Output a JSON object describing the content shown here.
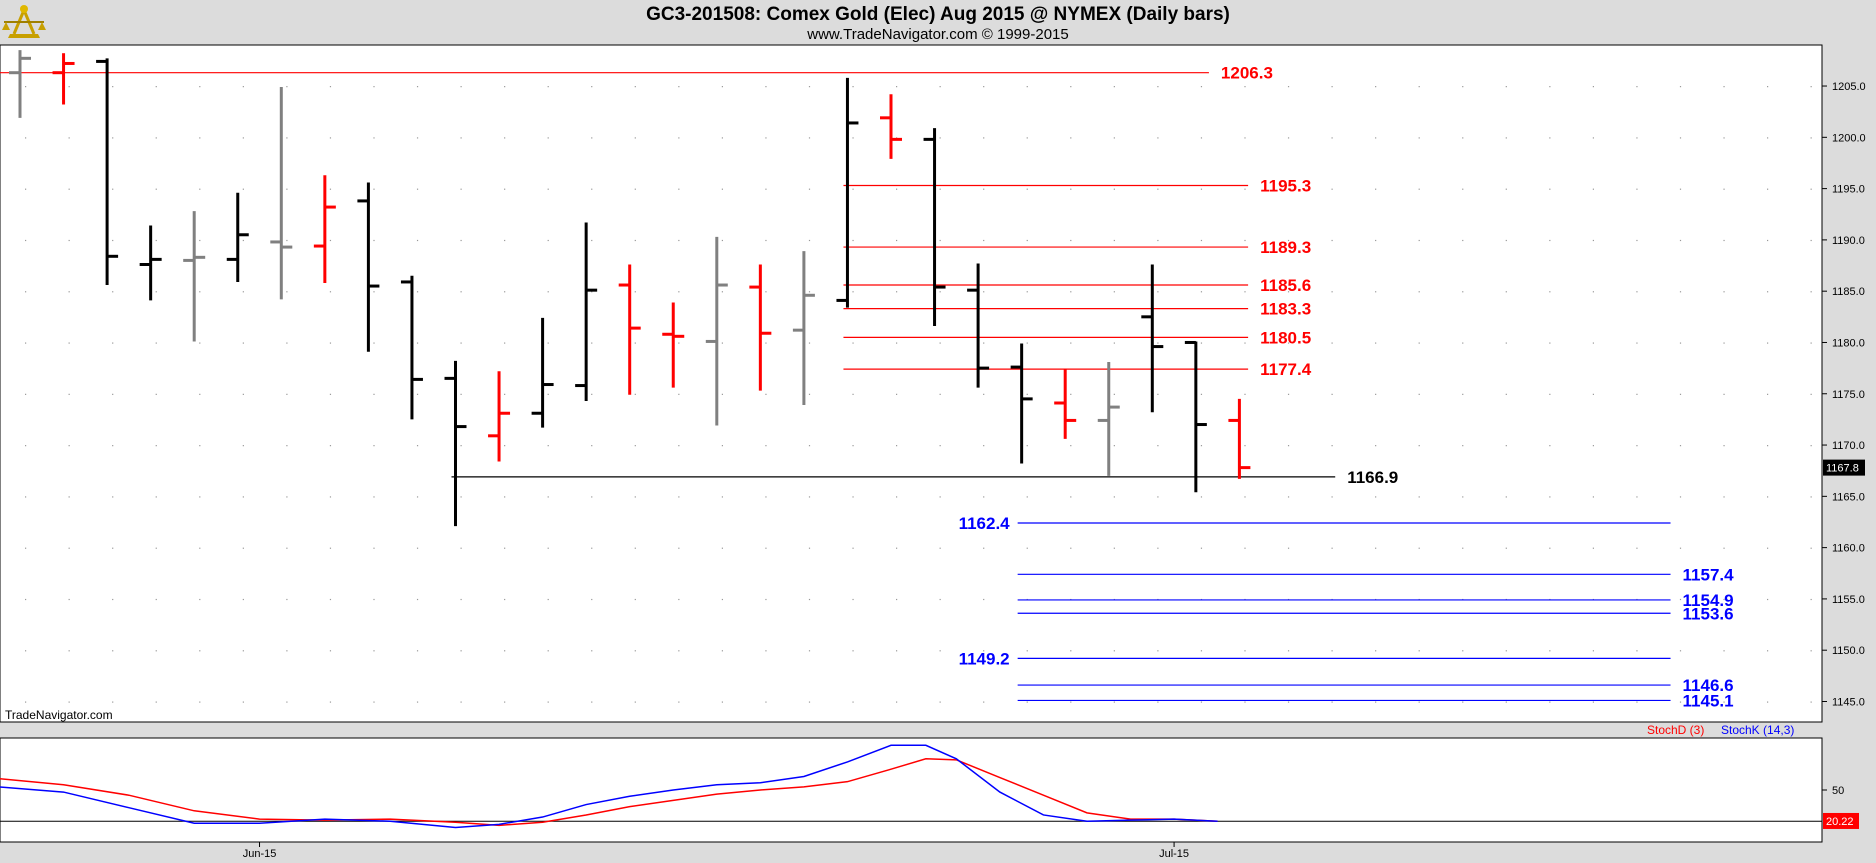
{
  "header": {
    "title": "GC3-201508:  Comex Gold (Elec) Aug 2015 @ NYMEX  (Daily bars)",
    "subtitle": "www.TradeNavigator.com © 1999-2015",
    "watermark": "TradeNavigator.com"
  },
  "colors": {
    "up": "#000000",
    "down": "#ff0000",
    "flat": "#808080",
    "resistance": "#ff0000",
    "support": "#0000ff",
    "pivot": "#000000",
    "stochD": "#ff0000",
    "stochK": "#0000ff"
  },
  "chart_data": [
    {
      "type": "ohlc",
      "title": "GC3-201508:  Comex Gold (Elec) Aug 2015 @ NYMEX  (Daily bars)",
      "ylim": [
        1143.0,
        1209.0
      ],
      "y_ticks": [
        "1205.0",
        "1200.0",
        "1195.0",
        "1190.0",
        "1185.0",
        "1180.0",
        "1175.0",
        "1170.0",
        "1165.0",
        "1160.0",
        "1155.0",
        "1150.0",
        "1145.0"
      ],
      "x_ticks": [
        {
          "label": "Jun-15",
          "bar": 5.5
        },
        {
          "label": "Jul-15",
          "bar": 26.5
        }
      ],
      "last_price": "1167.8",
      "bars": [
        {
          "o": 1206.3,
          "h": 1208.5,
          "l": 1201.9,
          "c": 1207.7,
          "col": "flat"
        },
        {
          "o": 1206.3,
          "h": 1208.2,
          "l": 1203.2,
          "c": 1207.2,
          "col": "down"
        },
        {
          "o": 1207.4,
          "h": 1207.7,
          "l": 1185.6,
          "c": 1188.4,
          "col": "up"
        },
        {
          "o": 1187.6,
          "h": 1191.4,
          "l": 1184.1,
          "c": 1188.1,
          "col": "up"
        },
        {
          "o": 1188.0,
          "h": 1192.8,
          "l": 1180.1,
          "c": 1188.3,
          "col": "flat"
        },
        {
          "o": 1188.1,
          "h": 1194.6,
          "l": 1185.9,
          "c": 1190.5,
          "col": "up"
        },
        {
          "o": 1189.8,
          "h": 1204.9,
          "l": 1184.2,
          "c": 1189.3,
          "col": "flat"
        },
        {
          "o": 1189.4,
          "h": 1196.3,
          "l": 1185.8,
          "c": 1193.2,
          "col": "down"
        },
        {
          "o": 1193.8,
          "h": 1195.6,
          "l": 1179.1,
          "c": 1185.5,
          "col": "up"
        },
        {
          "o": 1185.9,
          "h": 1186.5,
          "l": 1172.5,
          "c": 1176.4,
          "col": "up"
        },
        {
          "o": 1176.5,
          "h": 1178.2,
          "l": 1162.1,
          "c": 1171.8,
          "col": "up"
        },
        {
          "o": 1170.9,
          "h": 1177.2,
          "l": 1168.4,
          "c": 1173.1,
          "col": "down"
        },
        {
          "o": 1173.1,
          "h": 1182.4,
          "l": 1171.7,
          "c": 1175.9,
          "col": "up"
        },
        {
          "o": 1175.8,
          "h": 1191.7,
          "l": 1174.3,
          "c": 1185.1,
          "col": "up"
        },
        {
          "o": 1185.6,
          "h": 1187.6,
          "l": 1174.9,
          "c": 1181.4,
          "col": "down"
        },
        {
          "o": 1180.8,
          "h": 1183.9,
          "l": 1175.6,
          "c": 1180.6,
          "col": "down"
        },
        {
          "o": 1180.1,
          "h": 1190.3,
          "l": 1171.9,
          "c": 1185.6,
          "col": "flat"
        },
        {
          "o": 1185.4,
          "h": 1187.6,
          "l": 1175.3,
          "c": 1180.9,
          "col": "down"
        },
        {
          "o": 1181.2,
          "h": 1188.9,
          "l": 1173.9,
          "c": 1184.6,
          "col": "flat"
        },
        {
          "o": 1184.1,
          "h": 1205.8,
          "l": 1183.4,
          "c": 1201.4,
          "col": "up"
        },
        {
          "o": 1201.9,
          "h": 1204.2,
          "l": 1197.9,
          "c": 1199.8,
          "col": "down"
        },
        {
          "o": 1199.8,
          "h": 1200.9,
          "l": 1181.6,
          "c": 1185.4,
          "col": "up"
        },
        {
          "o": 1185.1,
          "h": 1187.7,
          "l": 1175.6,
          "c": 1177.5,
          "col": "up"
        },
        {
          "o": 1177.6,
          "h": 1179.9,
          "l": 1168.2,
          "c": 1174.5,
          "col": "up"
        },
        {
          "o": 1174.1,
          "h": 1177.4,
          "l": 1170.6,
          "c": 1172.4,
          "col": "down"
        },
        {
          "o": 1172.4,
          "h": 1178.1,
          "l": 1167.0,
          "c": 1173.7,
          "col": "flat"
        },
        {
          "o": 1182.5,
          "h": 1187.6,
          "l": 1173.2,
          "c": 1179.6,
          "col": "up"
        },
        {
          "o": 1180.0,
          "h": 1180.1,
          "l": 1165.4,
          "c": 1172.0,
          "col": "up"
        },
        {
          "o": 1172.4,
          "h": 1174.5,
          "l": 1166.7,
          "c": 1167.8,
          "col": "down"
        }
      ],
      "levels": [
        {
          "value": 1206.3,
          "label": "1206.3",
          "color": "resistance",
          "from_bar": -1,
          "to_bar": 27.3,
          "label_side": "right"
        },
        {
          "value": 1195.3,
          "label": "1195.3",
          "color": "resistance",
          "from_bar": 19,
          "to_bar": 28.2,
          "label_side": "right"
        },
        {
          "value": 1189.3,
          "label": "1189.3",
          "color": "resistance",
          "from_bar": 19,
          "to_bar": 28.2,
          "label_side": "right"
        },
        {
          "value": 1185.6,
          "label": "1185.6",
          "color": "resistance",
          "from_bar": 19,
          "to_bar": 28.2,
          "label_side": "right"
        },
        {
          "value": 1183.3,
          "label": "1183.3",
          "color": "resistance",
          "from_bar": 19,
          "to_bar": 28.2,
          "label_side": "right"
        },
        {
          "value": 1180.5,
          "label": "1180.5",
          "color": "resistance",
          "from_bar": 19,
          "to_bar": 28.2,
          "label_side": "right"
        },
        {
          "value": 1177.4,
          "label": "1177.4",
          "color": "resistance",
          "from_bar": 19,
          "to_bar": 28.2,
          "label_side": "right"
        },
        {
          "value": 1166.9,
          "label": "1166.9",
          "color": "pivot",
          "from_bar": 10,
          "to_bar": 30.2,
          "label_side": "right"
        },
        {
          "value": 1162.4,
          "label": "1162.4",
          "color": "support",
          "from_bar": 23,
          "to_bar": 37.9,
          "label_side": "left"
        },
        {
          "value": 1157.4,
          "label": "1157.4",
          "color": "support",
          "from_bar": 23,
          "to_bar": 37.9,
          "label_side": "right"
        },
        {
          "value": 1154.9,
          "label": "1154.9",
          "color": "support",
          "from_bar": 23,
          "to_bar": 37.9,
          "label_side": "right"
        },
        {
          "value": 1153.6,
          "label": "1153.6",
          "color": "support",
          "from_bar": 23,
          "to_bar": 37.9,
          "label_side": "right"
        },
        {
          "value": 1149.2,
          "label": "1149.2",
          "color": "support",
          "from_bar": 23,
          "to_bar": 37.9,
          "label_side": "left"
        },
        {
          "value": 1146.6,
          "label": "1146.6",
          "color": "support",
          "from_bar": 23,
          "to_bar": 37.9,
          "label_side": "right"
        },
        {
          "value": 1145.1,
          "label": "1145.1",
          "color": "support",
          "from_bar": 23,
          "to_bar": 37.9,
          "label_side": "right"
        }
      ]
    },
    {
      "type": "line",
      "title": "",
      "ylim": [
        0,
        100
      ],
      "y_ticks": [
        "50"
      ],
      "reference_line": 20,
      "last_value": "20.22",
      "series": [
        {
          "name": "StochD (3)",
          "color": "stochD",
          "x": [
            -0.5,
            1,
            2.5,
            4,
            5.5,
            7,
            8.5,
            10,
            11,
            12,
            13,
            14,
            15,
            16,
            17,
            18,
            19,
            20,
            20.8,
            21.5,
            22.5,
            23.5,
            24.5,
            25.5,
            26.5,
            27.5
          ],
          "y": [
            61,
            55,
            45,
            30,
            22,
            21,
            22,
            19,
            16,
            19,
            26,
            34,
            40,
            46,
            50,
            53,
            58,
            70,
            80,
            79,
            62,
            45,
            28,
            22,
            22,
            20
          ]
        },
        {
          "name": "StochK (14,3)",
          "color": "stochK",
          "x": [
            -0.5,
            1,
            2.5,
            4,
            5.5,
            7,
            8.5,
            10,
            11,
            12,
            13,
            14,
            15,
            16,
            17,
            18,
            19,
            20,
            20.8,
            21.5,
            22.5,
            23.5,
            24.5,
            25.5,
            26.5,
            27.5
          ],
          "y": [
            53,
            48,
            33,
            18,
            18,
            22,
            20,
            14,
            17,
            24,
            36,
            44,
            50,
            55,
            57,
            63,
            77,
            93,
            93,
            80,
            48,
            26,
            20,
            21,
            22,
            20
          ]
        }
      ]
    }
  ]
}
